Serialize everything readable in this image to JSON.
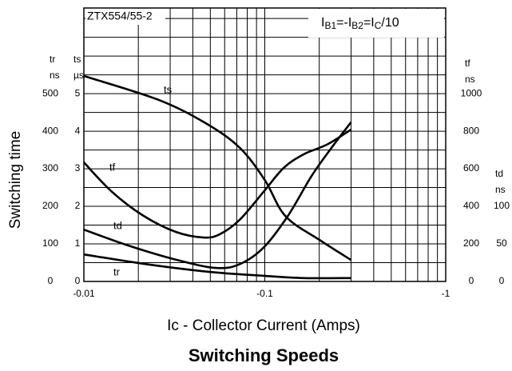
{
  "chart_data": {
    "type": "line",
    "title": "Switching Speeds",
    "ylabel": "Switching time",
    "xlabel": "Ic - Collector Current (Amps)",
    "annotations": [
      "ZTX554/55-2",
      [
        "I",
        "B1",
        "=-I",
        "B2",
        "=I",
        "C",
        "/10"
      ]
    ],
    "xscale": "log",
    "xlim": [
      -0.01,
      -1
    ],
    "xticks": [
      -0.01,
      -0.1,
      -1
    ],
    "xgrid": [
      -0.02,
      -0.03,
      -0.04,
      -0.05,
      -0.06,
      -0.07,
      -0.08,
      -0.09,
      -0.2,
      -0.3,
      -0.4,
      -0.5,
      -0.6,
      -0.7,
      -0.8,
      -0.9
    ],
    "axes": [
      {
        "key": "tr",
        "label": [
          "tr",
          "ns"
        ],
        "side": "left",
        "lim": [
          0,
          728
        ],
        "ticks": [
          0,
          100,
          200,
          300,
          400,
          500
        ]
      },
      {
        "key": "ts",
        "label": [
          "ts",
          "µs"
        ],
        "side": "left",
        "lim": [
          0,
          7.28
        ],
        "ticks": [
          0,
          1,
          2,
          3,
          4,
          5
        ],
        "grid": true,
        "ygrid": [
          0.5,
          1.5,
          2.5,
          3.5,
          4.5,
          5.5,
          6,
          6.5,
          7
        ]
      },
      {
        "key": "tf",
        "label": [
          "tf",
          "ns"
        ],
        "side": "right",
        "lim": [
          0,
          1456
        ],
        "ticks": [
          0,
          200,
          400,
          600,
          800,
          1000
        ]
      },
      {
        "key": "td",
        "label": [
          "td",
          "ns"
        ],
        "side": "right",
        "lim": [
          0,
          364
        ],
        "ticks": [
          0,
          50,
          100
        ]
      }
    ],
    "series": [
      {
        "name": "ts",
        "axis": "ts",
        "color": "#000000",
        "x": [
          -0.01,
          -0.026,
          -0.048,
          -0.073,
          -0.1,
          -0.13,
          -0.2,
          -0.3
        ],
        "values": [
          5.47,
          4.83,
          4.19,
          3.55,
          2.7,
          1.74,
          1.11,
          0.57
        ]
      },
      {
        "name": "tf",
        "axis": "tf",
        "color": "#000000",
        "x": [
          -0.01,
          -0.0143,
          -0.0214,
          -0.0322,
          -0.0459,
          -0.0563,
          -0.0726,
          -0.0984,
          -0.127,
          -0.164,
          -0.222,
          -0.3
        ],
        "values": [
          634,
          477,
          349,
          264,
          234,
          251,
          328,
          477,
          604,
          677,
          730,
          809
        ]
      },
      {
        "name": "td",
        "axis": "td",
        "color": "#000000",
        "x": [
          -0.01,
          -0.0175,
          -0.0322,
          -0.0535,
          -0.0726,
          -0.0984,
          -0.134,
          -0.181,
          -0.234,
          -0.3
        ],
        "values": [
          69,
          48,
          29,
          18,
          23,
          45,
          87,
          140,
          178,
          212
        ]
      },
      {
        "name": "tr",
        "axis": "tr",
        "color": "#000000",
        "x": [
          -0.01,
          -0.0214,
          -0.0483,
          -0.0984,
          -0.164,
          -0.3
        ],
        "values": [
          72,
          47,
          26,
          15,
          9,
          9
        ]
      }
    ]
  }
}
